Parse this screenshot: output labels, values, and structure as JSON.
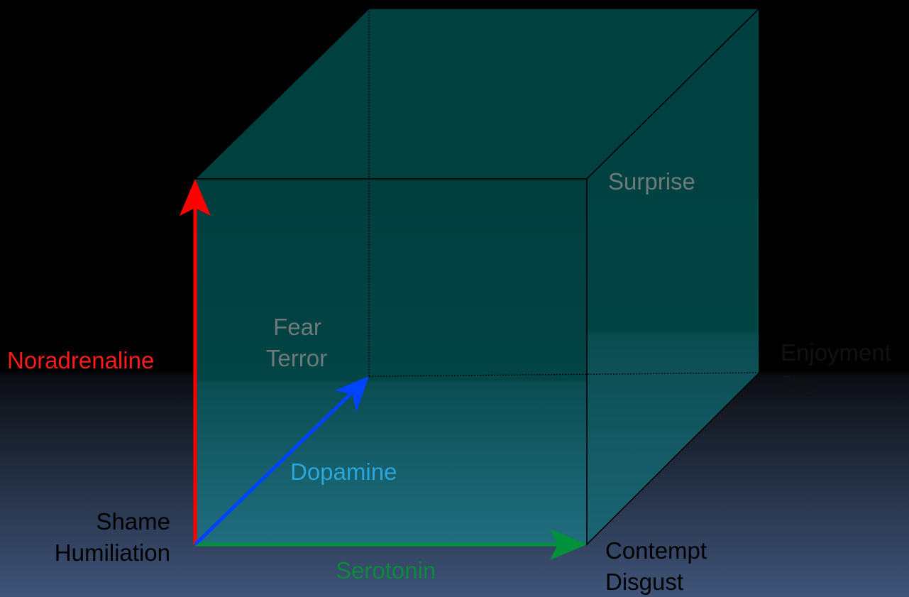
{
  "axes": {
    "noradrenaline": "Noradrenaline",
    "dopamine": "Dopamine",
    "serotonin": "Serotonin"
  },
  "corners": {
    "fear": [
      "Fear",
      "Terror"
    ],
    "surprise": [
      "Surprise"
    ],
    "enjoyment": [
      "Enjoyment",
      "Joy"
    ],
    "shame": [
      "Shame",
      "Humiliation"
    ],
    "contempt": [
      "Contempt",
      "Disgust"
    ]
  }
}
